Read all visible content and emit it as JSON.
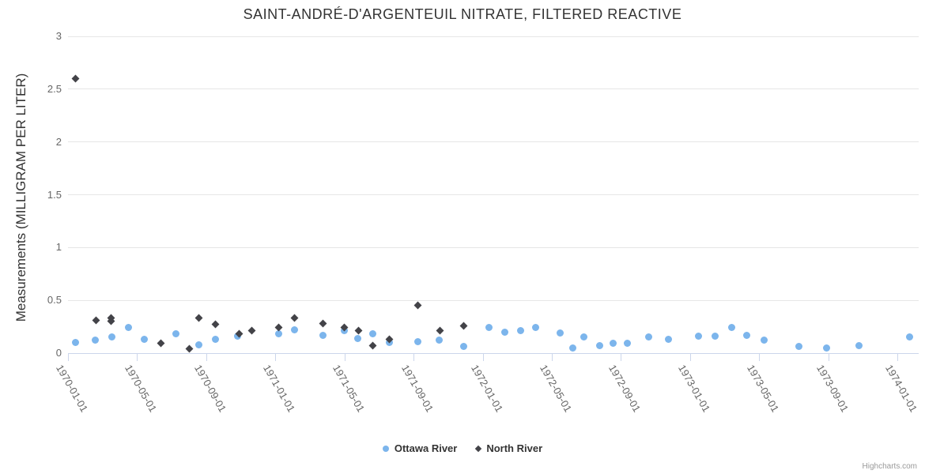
{
  "credit": "Highcharts.com",
  "colors": {
    "ottawa_river": "#7cb5ec",
    "north_river": "#434348",
    "grid_line": "#e6e6e6",
    "axis_line": "#ccd6eb",
    "tick_label": "#666666",
    "title_text": "#333333",
    "credit_text": "#999999"
  },
  "chart_data": {
    "type": "scatter",
    "title": "SAINT-ANDRÉ-D'ARGENTEUIL NITRATE, FILTERED REACTIVE",
    "xlabel": "",
    "ylabel": "Measurements (MILLIGRAM PER LITER)",
    "ylim": [
      0,
      3
    ],
    "yticks": [
      "0",
      "0.5",
      "1",
      "1.5",
      "2",
      "2.5",
      "3"
    ],
    "xlim": [
      "1970-01-01",
      "1974-02-08"
    ],
    "xticks": [
      "1970-01-01",
      "1970-05-01",
      "1970-09-01",
      "1971-01-01",
      "1971-05-01",
      "1971-09-01",
      "1972-01-01",
      "1972-05-01",
      "1972-09-01",
      "1973-01-01",
      "1973-05-01",
      "1973-09-01",
      "1974-01-01"
    ],
    "grid": true,
    "legend_position": "bottom",
    "series": [
      {
        "name": "Ottawa River",
        "marker": "circle",
        "color": "#7cb5ec",
        "points": [
          [
            "1970-01-14",
            0.1
          ],
          [
            "1970-02-19",
            0.12
          ],
          [
            "1970-03-17",
            0.15
          ],
          [
            "1970-04-16",
            0.24
          ],
          [
            "1970-05-14",
            0.13
          ],
          [
            "1970-07-09",
            0.18
          ],
          [
            "1970-08-19",
            0.08
          ],
          [
            "1970-09-17",
            0.13
          ],
          [
            "1970-10-26",
            0.16
          ],
          [
            "1971-01-07",
            0.18
          ],
          [
            "1971-02-04",
            0.22
          ],
          [
            "1971-03-24",
            0.17
          ],
          [
            "1971-05-01",
            0.21
          ],
          [
            "1971-05-25",
            0.14
          ],
          [
            "1971-06-20",
            0.18
          ],
          [
            "1971-07-19",
            0.1
          ],
          [
            "1971-09-08",
            0.11
          ],
          [
            "1971-10-16",
            0.12
          ],
          [
            "1971-11-28",
            0.06
          ],
          [
            "1972-01-12",
            0.24
          ],
          [
            "1972-02-10",
            0.2
          ],
          [
            "1972-03-07",
            0.21
          ],
          [
            "1972-04-03",
            0.24
          ],
          [
            "1972-05-16",
            0.19
          ],
          [
            "1972-06-07",
            0.05
          ],
          [
            "1972-06-27",
            0.15
          ],
          [
            "1972-07-25",
            0.07
          ],
          [
            "1972-08-18",
            0.09
          ],
          [
            "1972-09-12",
            0.09
          ],
          [
            "1972-10-19",
            0.15
          ],
          [
            "1972-11-24",
            0.13
          ],
          [
            "1973-01-16",
            0.16
          ],
          [
            "1973-02-15",
            0.16
          ],
          [
            "1973-03-13",
            0.24
          ],
          [
            "1973-04-10",
            0.17
          ],
          [
            "1973-05-09",
            0.12
          ],
          [
            "1973-07-10",
            0.06
          ],
          [
            "1973-08-28",
            0.05
          ],
          [
            "1973-10-25",
            0.07
          ],
          [
            "1974-01-23",
            0.15
          ]
        ]
      },
      {
        "name": "North River",
        "marker": "diamond",
        "color": "#434348",
        "points": [
          [
            "1970-01-14",
            2.6
          ],
          [
            "1970-02-20",
            0.31
          ],
          [
            "1970-03-16",
            0.33
          ],
          [
            "1970-03-16",
            0.3
          ],
          [
            "1970-06-13",
            0.09
          ],
          [
            "1970-08-02",
            0.04
          ],
          [
            "1970-08-19",
            0.33
          ],
          [
            "1970-09-17",
            0.27
          ],
          [
            "1970-10-28",
            0.18
          ],
          [
            "1970-11-20",
            0.21
          ],
          [
            "1971-01-07",
            0.24
          ],
          [
            "1971-02-04",
            0.33
          ],
          [
            "1971-03-24",
            0.28
          ],
          [
            "1971-05-01",
            0.24
          ],
          [
            "1971-05-26",
            0.21
          ],
          [
            "1971-06-20",
            0.07
          ],
          [
            "1971-07-19",
            0.13
          ],
          [
            "1971-09-08",
            0.45
          ],
          [
            "1971-10-17",
            0.21
          ],
          [
            "1971-11-28",
            0.26
          ]
        ]
      }
    ]
  }
}
